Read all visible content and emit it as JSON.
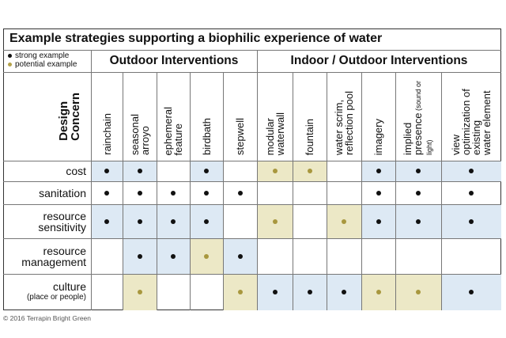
{
  "title": "Example strategies supporting a biophilic experience of water",
  "legend": [
    {
      "label": "strong example",
      "color": "#111111"
    },
    {
      "label": "potential example",
      "color": "#b4a24a"
    }
  ],
  "colors": {
    "blue": "#dde9f4",
    "tan": "#ece8c6",
    "strong_dot": "#111111",
    "potential_dot": "#a8973e"
  },
  "groups": [
    {
      "title": "Outdoor Interventions"
    },
    {
      "title": "Indoor / Outdoor Interventions"
    }
  ],
  "axis_label": "Design\nConcern",
  "columns": [
    {
      "label": "rainchain",
      "sub": ""
    },
    {
      "label": "seasonal\narroyo",
      "sub": ""
    },
    {
      "label": "ephemeral\nfeature",
      "sub": ""
    },
    {
      "label": "birdbath",
      "sub": ""
    },
    {
      "label": "stepwell",
      "sub": ""
    },
    {
      "label": "modular\nwaterwall",
      "sub": ""
    },
    {
      "label": "fountain",
      "sub": ""
    },
    {
      "label": "water scrim,\nreflection pool",
      "sub": ""
    },
    {
      "label": "imagery",
      "sub": ""
    },
    {
      "label": "implied\npresence",
      "sub": "(sound or light)"
    },
    {
      "label": "view\noptimization of existing\nwater element",
      "sub": ""
    }
  ],
  "rows": [
    {
      "label": "cost",
      "sub": "",
      "cells": [
        "B",
        "B",
        "",
        "B",
        "",
        "P",
        "P",
        "",
        "B",
        "B",
        "B"
      ]
    },
    {
      "label": "sanitation",
      "sub": "",
      "cells": [
        "b",
        "b",
        "b",
        "b",
        "b",
        "",
        "",
        "",
        "b",
        "b",
        "b"
      ]
    },
    {
      "label": "resource\nsensitivity",
      "sub": "",
      "cells": [
        "B",
        "B",
        "B",
        "B",
        "",
        "P",
        "",
        "P",
        "B",
        "B",
        "B"
      ]
    },
    {
      "label": "resource\nmanagement",
      "sub": "",
      "cells": [
        "",
        "B",
        "B",
        "P",
        "B",
        "",
        "",
        "",
        "",
        "",
        ""
      ]
    },
    {
      "label": "culture",
      "sub": "(place or people)",
      "cells": [
        "",
        "P",
        "",
        "",
        "P",
        "B",
        "B",
        "B",
        "P",
        "P",
        "B"
      ]
    }
  ],
  "copyright": "© 2016 Terrapin Bright Green"
}
